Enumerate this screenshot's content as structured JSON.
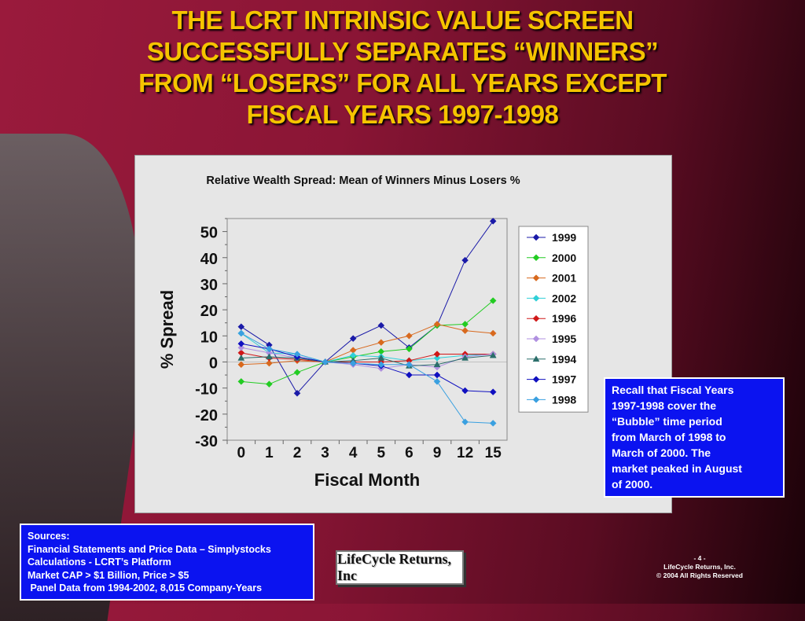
{
  "slide": {
    "title_lines": [
      "THE LCRT INTRINSIC VALUE SCREEN",
      "SUCCESSFULLY SEPARATES “WINNERS”",
      "FROM “LOSERS” FOR ALL YEARS EXCEPT",
      "FISCAL YEARS 1997-1998"
    ],
    "note_lines": [
      "Recall that Fiscal Years",
      "1997-1998 cover the",
      "“Bubble” time period",
      "from March of 1998 to",
      "March of 2000. The",
      "market peaked in August",
      "of 2000."
    ],
    "sources_lines": [
      "Sources:",
      "Financial Statements and Price Data – Simplystocks",
      "Calculations - LCRT’s Platform",
      "Market CAP > $1 Billion, Price > $5",
      " Panel Data from 1994-2002, 8,015 Company-Years"
    ],
    "logo_text": "LifeCycle Returns, Inc",
    "footer_lines": [
      "- 4 -",
      "LifeCycle Returns, Inc.",
      "© 2004 All Rights Reserved"
    ]
  },
  "chart_data": {
    "type": "line",
    "title": "Relative Wealth Spread: Mean of Winners Minus Losers %",
    "xlabel": "Fiscal Month",
    "ylabel": "% Spread",
    "categories": [
      "0",
      "1",
      "2",
      "3",
      "4",
      "5",
      "6",
      "9",
      "12",
      "15"
    ],
    "yticks": [
      50,
      40,
      30,
      20,
      10,
      0,
      -10,
      -20,
      -30
    ],
    "ylim": [
      -30,
      55
    ],
    "grid": false,
    "legend_position": "right",
    "series": [
      {
        "name": "1999",
        "color": "#1a1aa8",
        "marker": "diamond",
        "values": [
          13.5,
          6.5,
          -12,
          0,
          9,
          14,
          5.5,
          14,
          39,
          54
        ]
      },
      {
        "name": "2000",
        "color": "#22cc22",
        "marker": "diamond",
        "values": [
          -7.5,
          -8.5,
          -4,
          0,
          2,
          4,
          5,
          14,
          14.5,
          23.5
        ]
      },
      {
        "name": "2001",
        "color": "#d8691e",
        "marker": "diamond",
        "values": [
          -1,
          -0.5,
          0.5,
          0,
          4.5,
          7.5,
          10,
          14.5,
          12,
          11
        ]
      },
      {
        "name": "2002",
        "color": "#30d0d8",
        "marker": "diamond",
        "values": [
          11,
          3.5,
          3,
          0,
          2.5,
          2,
          0.5,
          1.5,
          2.5,
          3
        ]
      },
      {
        "name": "1996",
        "color": "#d01818",
        "marker": "diamond",
        "values": [
          3.5,
          1.5,
          1,
          0,
          0,
          0,
          0.5,
          3,
          3,
          3
        ]
      },
      {
        "name": "1995",
        "color": "#b090e0",
        "marker": "diamond",
        "values": [
          5.5,
          3.5,
          1.5,
          0,
          -1,
          -2.5,
          -1,
          -2,
          2,
          3
        ]
      },
      {
        "name": "1994",
        "color": "#2a6e6a",
        "marker": "triangle",
        "values": [
          1.5,
          2,
          1.5,
          0,
          0.5,
          1.5,
          -1.5,
          -1,
          1.5,
          2.5
        ]
      },
      {
        "name": "1997",
        "color": "#1010c0",
        "marker": "diamond",
        "values": [
          7,
          5,
          2,
          0,
          -0.5,
          -1.5,
          -5,
          -5,
          -11,
          -11.5
        ]
      },
      {
        "name": "1998",
        "color": "#3aa0e0",
        "marker": "diamond",
        "values": [
          11,
          5,
          3,
          0,
          -0.5,
          -1,
          -1,
          -7.5,
          -23,
          -23.5
        ]
      }
    ]
  }
}
